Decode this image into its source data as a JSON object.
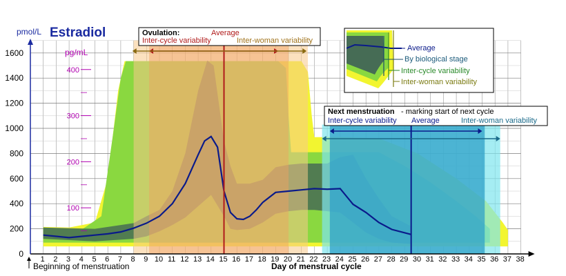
{
  "chart_data": {
    "type": "area",
    "title": "Estradiol",
    "ylabel": "pmol/L",
    "ylabel_secondary": "pg/mL",
    "xlabel": "Day of menstrual cycle",
    "x_ticks": [
      "1",
      "2",
      "3",
      "4",
      "5",
      "6",
      "7",
      "8",
      "9",
      "10",
      "11",
      "12",
      "13",
      "14",
      "15",
      "16",
      "17",
      "18",
      "19",
      "20",
      "21",
      "22",
      "23",
      "24",
      "25",
      "26",
      "27",
      "28",
      "29",
      "30",
      "31",
      "32",
      "33",
      "34",
      "35",
      "36",
      "37",
      "38"
    ],
    "y_ticks": [
      "0",
      "200",
      "400",
      "600",
      "800",
      "1000",
      "1200",
      "1400",
      "1600"
    ],
    "y2_ticks": [
      "100",
      "200",
      "300",
      "400"
    ],
    "xlim": [
      0,
      38
    ],
    "ylim": [
      0,
      1700
    ],
    "grid": true,
    "beginning_label": "Beginning of menstruation",
    "series": [
      {
        "name": "Average",
        "x": [
          1,
          2,
          3,
          4,
          5,
          6,
          7,
          8,
          9,
          10,
          11,
          12,
          13,
          13.5,
          14,
          14.5,
          15,
          15.5,
          16,
          16.5,
          17,
          17.5,
          18,
          19,
          20,
          21,
          22,
          23,
          24,
          25,
          26,
          27,
          28,
          29.5
        ],
        "values": [
          150,
          140,
          130,
          140,
          150,
          160,
          175,
          205,
          245,
          300,
          400,
          560,
          790,
          900,
          935,
          850,
          500,
          330,
          280,
          275,
          300,
          350,
          410,
          490,
          500,
          510,
          520,
          515,
          520,
          395,
          330,
          250,
          195,
          155
        ]
      },
      {
        "name": "By biological stage",
        "upper": [
          [
            1,
            210
          ],
          [
            5,
            200
          ],
          [
            8,
            245
          ],
          [
            9,
            300
          ],
          [
            10,
            350
          ],
          [
            11,
            500
          ],
          [
            12,
            800
          ],
          [
            13,
            1300
          ],
          [
            13.7,
            1540
          ],
          [
            14.2,
            1500
          ],
          [
            15,
            900
          ],
          [
            15.5,
            700
          ],
          [
            16,
            560
          ],
          [
            17,
            560
          ],
          [
            18,
            590
          ],
          [
            19,
            690
          ],
          [
            20,
            710
          ],
          [
            21,
            720
          ],
          [
            22,
            720
          ],
          [
            23,
            720
          ],
          [
            24,
            770
          ],
          [
            25,
            790
          ],
          [
            26,
            600
          ],
          [
            27,
            440
          ],
          [
            28,
            300
          ],
          [
            29.5,
            220
          ]
        ],
        "lower": [
          [
            1,
            120
          ],
          [
            5,
            100
          ],
          [
            8,
            120
          ],
          [
            9,
            140
          ],
          [
            10,
            180
          ],
          [
            11,
            230
          ],
          [
            12,
            290
          ],
          [
            13,
            380
          ],
          [
            14,
            470
          ],
          [
            15,
            300
          ],
          [
            15.5,
            200
          ],
          [
            16,
            190
          ],
          [
            17,
            200
          ],
          [
            18,
            250
          ],
          [
            19,
            320
          ],
          [
            20,
            340
          ],
          [
            21,
            350
          ],
          [
            22,
            350
          ],
          [
            23,
            340
          ],
          [
            24,
            330
          ],
          [
            25,
            250
          ],
          [
            26,
            170
          ],
          [
            27,
            120
          ],
          [
            28,
            90
          ],
          [
            29.5,
            80
          ]
        ]
      },
      {
        "name": "Inter-cycle variability",
        "upper": [
          [
            1,
            210
          ],
          [
            4,
            195
          ],
          [
            5.5,
            300
          ],
          [
            6.4,
            950
          ],
          [
            7,
            1400
          ],
          [
            7.4,
            1535
          ],
          [
            19.2,
            1535
          ],
          [
            19.8,
            1480
          ],
          [
            20,
            1100
          ],
          [
            20.2,
            810
          ],
          [
            22,
            810
          ],
          [
            27,
            810
          ],
          [
            29,
            700
          ],
          [
            31,
            570
          ],
          [
            33,
            420
          ],
          [
            34.5,
            300
          ],
          [
            35.6,
            200
          ]
        ],
        "lower": [
          [
            1,
            90
          ],
          [
            9,
            90
          ],
          [
            22,
            90
          ],
          [
            35.6,
            90
          ]
        ]
      },
      {
        "name": "Inter-woman variability",
        "upper": [
          [
            1,
            215
          ],
          [
            3,
            210
          ],
          [
            5,
            250
          ],
          [
            6,
            600
          ],
          [
            6.8,
            1300
          ],
          [
            7.3,
            1535
          ],
          [
            21,
            1535
          ],
          [
            21.5,
            1450
          ],
          [
            21.8,
            1100
          ],
          [
            22,
            930
          ],
          [
            24,
            930
          ],
          [
            27,
            920
          ],
          [
            30,
            800
          ],
          [
            33,
            600
          ],
          [
            35.3,
            420
          ],
          [
            36.6,
            250
          ],
          [
            37,
            190
          ]
        ],
        "lower": [
          [
            1,
            60
          ],
          [
            9,
            60
          ],
          [
            22,
            60
          ],
          [
            37,
            60
          ]
        ]
      }
    ],
    "ovulation": {
      "heading": "Ovulation:",
      "average_label": "Average",
      "inter_cycle_label": "Inter-cycle variability",
      "inter_woman_label": "Inter-woman variability",
      "average_day": 15,
      "inter_cycle_range": [
        9,
        20
      ],
      "inter_woman_range": [
        8,
        21
      ]
    },
    "next_menstruation": {
      "heading": "Next menstruation",
      "subheading": "- marking start of next cycle",
      "inter_cycle_label": "Inter-cycle variability",
      "average_label": "Average",
      "inter_woman_label": "Inter-woman variability",
      "average_day": 29.5,
      "inter_cycle_range": [
        24,
        35
      ],
      "inter_woman_range": [
        22,
        36
      ]
    },
    "legend": {
      "placement": "top-right",
      "entries": [
        "Average",
        "By biological stage",
        "Inter-cycle variability",
        "Inter-woman variability"
      ]
    },
    "colors": {
      "average_line": "#0a1a8a",
      "biological_stage": "#466c55",
      "inter_cycle": "#8ad840",
      "inter_woman": "#f2f530",
      "ovulation_average": "#b01a1a",
      "ovulation_inter_cycle": "#f0a060",
      "ovulation_inter_woman": "#f7c98a",
      "menstruation_inter_cycle": "#2fa0c8",
      "menstruation_inter_woman": "#7fe6ee",
      "axis_title": "#1a2aa0",
      "secondary_axis": "#b000b0"
    }
  }
}
